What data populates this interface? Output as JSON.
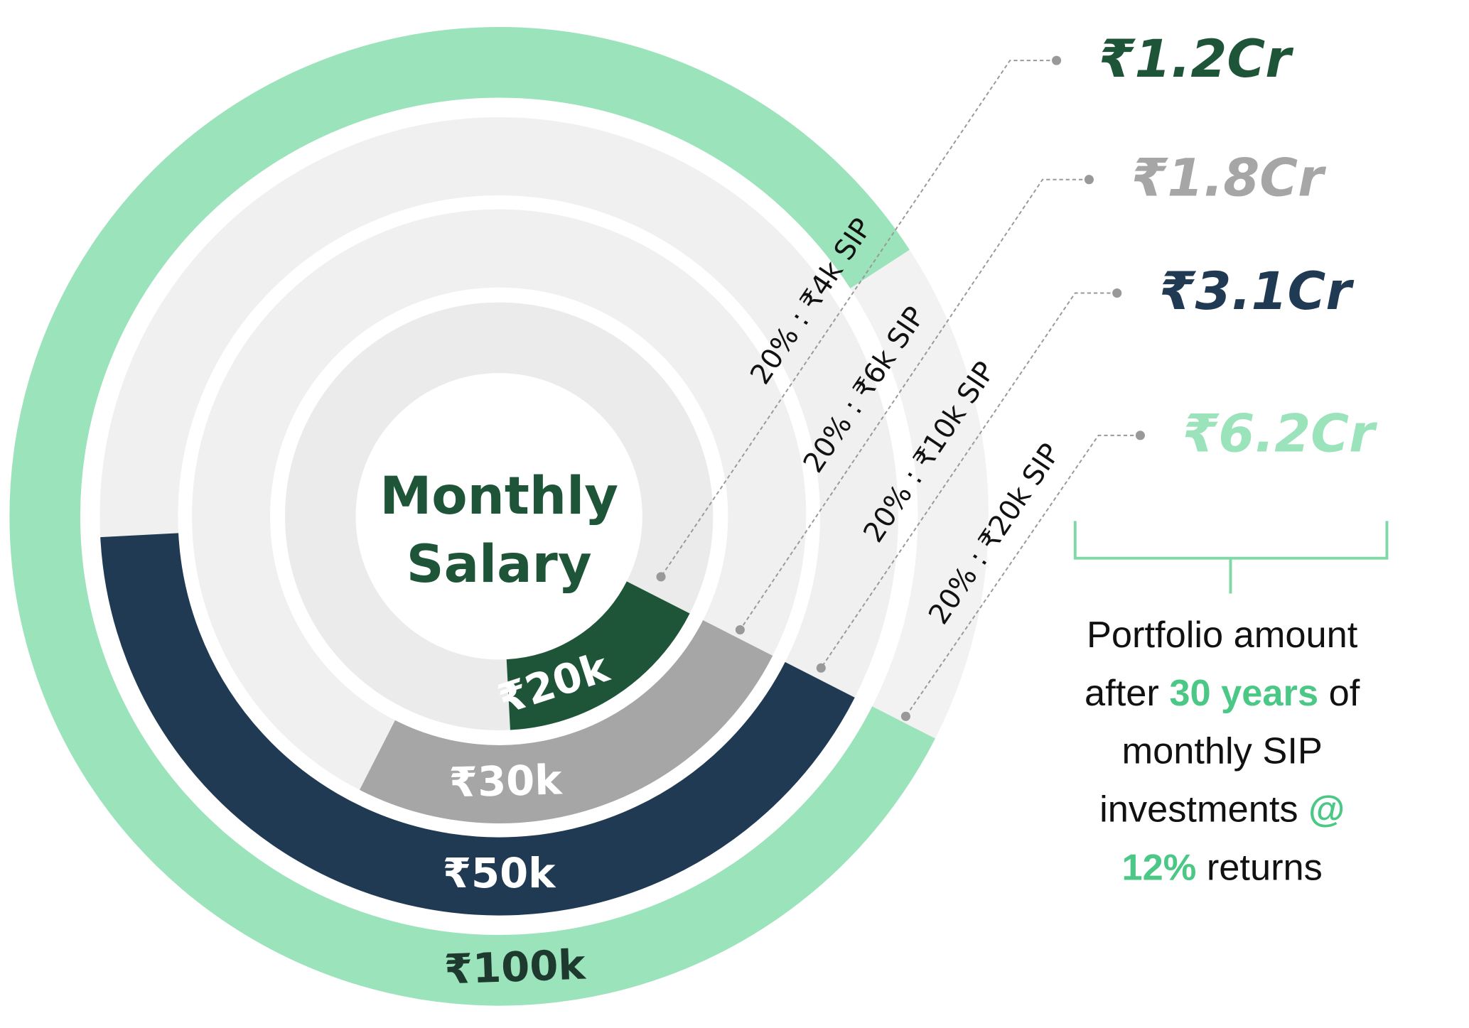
{
  "chart_data": {
    "type": "radial_bar",
    "title_lines": [
      "Monthly",
      "Salary"
    ],
    "values": [
      20000,
      30000,
      50000,
      100000
    ],
    "value_labels": [
      "₹20k",
      "₹30k",
      "₹50k",
      "₹100k"
    ],
    "colors": [
      "#1e5538",
      "#a6a6a6",
      "#1f3a52",
      "#9be3bb"
    ],
    "ylim": [
      0,
      120000
    ],
    "portfolio_labels": [
      "₹1.2Cr",
      "₹1.8Cr",
      "₹3.1Cr",
      "₹6.2Cr"
    ],
    "sip_labels": [
      "20% : ₹4k SIP",
      "20% : ₹6k SIP",
      "20% : ₹10k SIP",
      "20% : ₹20k SIP"
    ],
    "caption_lines": [
      [
        {
          "text": "Portfolio amount",
          "highlight": false
        }
      ],
      [
        {
          "text": "after ",
          "highlight": false
        },
        {
          "text": "30 years",
          "highlight": true
        },
        {
          "text": " of",
          "highlight": false
        }
      ],
      [
        {
          "text": "monthly SIP",
          "highlight": false
        }
      ],
      [
        {
          "text": "investments ",
          "highlight": false
        },
        {
          "text": "@",
          "highlight": true
        }
      ],
      [
        {
          "text": "12%",
          "highlight": true
        },
        {
          "text": " returns",
          "highlight": false
        }
      ]
    ]
  }
}
